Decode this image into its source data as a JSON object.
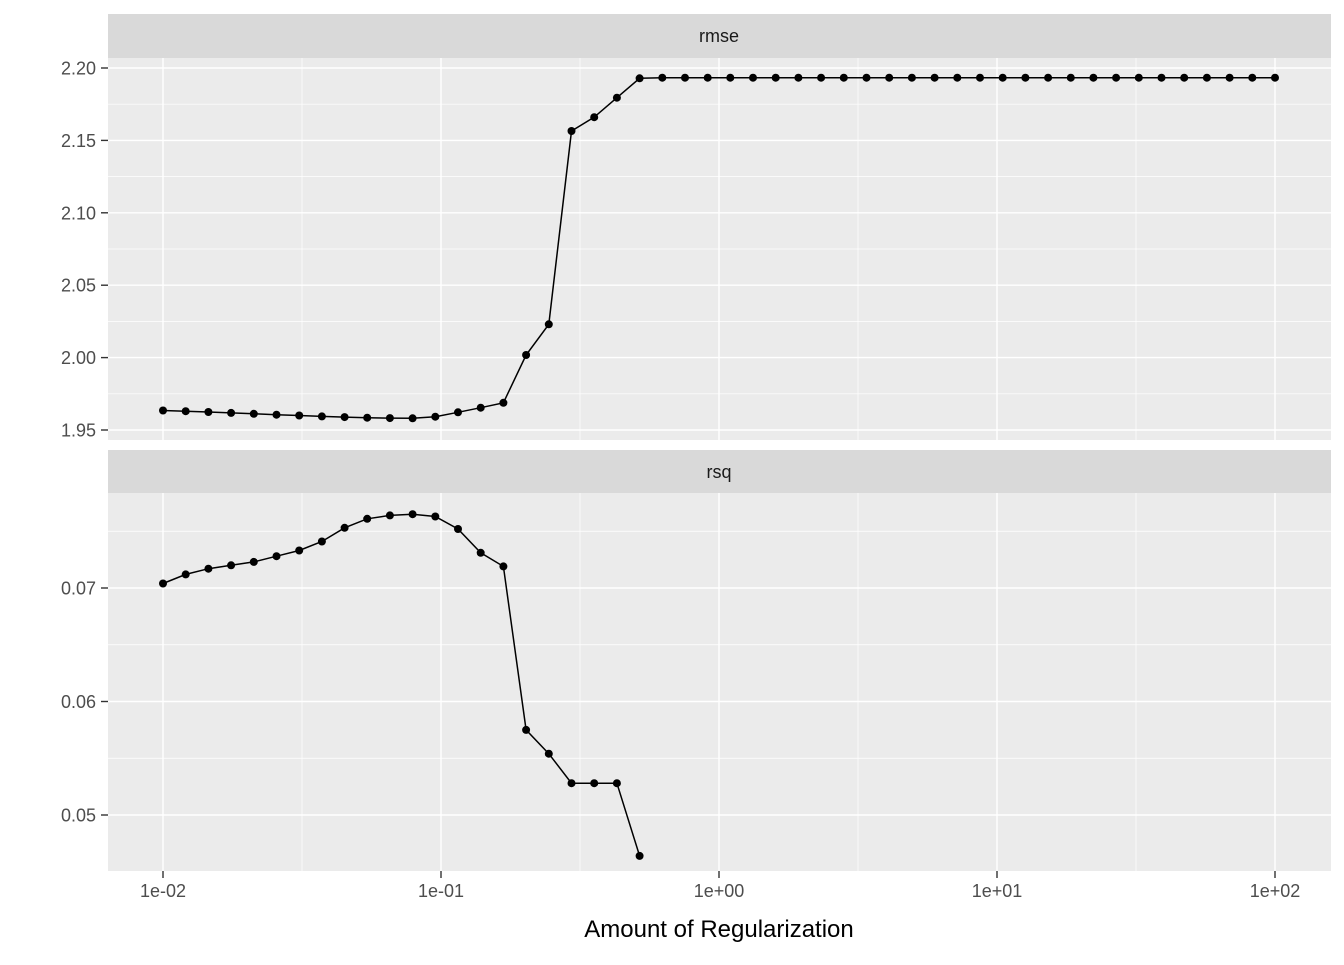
{
  "chart_data": {
    "type": "line",
    "title": "",
    "xlabel": "Amount of Regularization",
    "ylabel": "",
    "x_scale": "log10",
    "x_range_log10": [
      -2.2,
      2.2
    ],
    "legend": "none",
    "grid": "major-and-minor-white-on-grey",
    "xticks": [
      {
        "value": 0.01,
        "label": "1e-02"
      },
      {
        "value": 0.1,
        "label": "1e-01"
      },
      {
        "value": 1,
        "label": "1e+00"
      },
      {
        "value": 10,
        "label": "1e+01"
      },
      {
        "value": 100,
        "label": "1e+02"
      }
    ],
    "facets": [
      {
        "label": "rmse",
        "ylim": [
          1.947,
          2.206
        ],
        "yticks": [
          {
            "value": 1.95,
            "label": "1.95"
          },
          {
            "value": 2.0,
            "label": "2.00"
          },
          {
            "value": 2.05,
            "label": "2.05"
          },
          {
            "value": 2.1,
            "label": "2.10"
          },
          {
            "value": 2.15,
            "label": "2.15"
          },
          {
            "value": 2.2,
            "label": "2.20"
          }
        ],
        "series": {
          "name": "rmse",
          "x": [
            0.01,
            0.012068,
            0.014563,
            0.017575,
            0.02121,
            0.025595,
            0.030888,
            0.037276,
            0.044984,
            0.054287,
            0.065513,
            0.07906,
            0.09541,
            0.11514,
            0.13895,
            0.16768,
            0.20236,
            0.24421,
            0.29471,
            0.35565,
            0.42919,
            0.51795,
            0.62506,
            0.75431,
            0.9103,
            1.0985,
            1.3257,
            1.5999,
            1.9307,
            2.33,
            2.8118,
            3.3932,
            4.0949,
            4.9417,
            5.9636,
            7.1969,
            8.6851,
            10.481,
            12.649,
            15.264,
            18.421,
            22.23,
            26.827,
            32.375,
            39.069,
            47.149,
            56.899,
            68.665,
            82.864,
            100
          ],
          "y": [
            1.9635,
            1.963,
            1.9624,
            1.9618,
            1.9612,
            1.9606,
            1.96,
            1.9594,
            1.9589,
            1.9585,
            1.9582,
            1.9581,
            1.9592,
            1.9622,
            1.9654,
            1.9688,
            2.0018,
            2.023,
            2.1565,
            2.166,
            2.1795,
            2.1929,
            2.1933,
            2.1933,
            2.1933,
            2.1933,
            2.1933,
            2.1933,
            2.1933,
            2.1933,
            2.1933,
            2.1933,
            2.1933,
            2.1933,
            2.1933,
            2.1933,
            2.1933,
            2.1933,
            2.1933,
            2.1933,
            2.1933,
            2.1933,
            2.1933,
            2.1933,
            2.1933,
            2.1933,
            2.1933,
            2.1933,
            2.1933,
            2.1933
          ]
        }
      },
      {
        "label": "rsq",
        "ylim": [
          0.0449,
          0.078
        ],
        "yticks": [
          {
            "value": 0.05,
            "label": "0.05"
          },
          {
            "value": 0.06,
            "label": "0.06"
          },
          {
            "value": 0.07,
            "label": "0.07"
          }
        ],
        "series": {
          "name": "rsq",
          "x": [
            0.01,
            0.012068,
            0.014563,
            0.017575,
            0.02121,
            0.025595,
            0.030888,
            0.037276,
            0.044984,
            0.054287,
            0.065513,
            0.07906,
            0.09541,
            0.11514,
            0.13895,
            0.16768,
            0.20236,
            0.24421,
            0.29471,
            0.35565,
            0.42919,
            0.51795
          ],
          "y": [
            0.0704,
            0.0712,
            0.0717,
            0.072,
            0.0723,
            0.0728,
            0.0733,
            0.0741,
            0.0753,
            0.0761,
            0.0764,
            0.0765,
            0.0763,
            0.0752,
            0.0731,
            0.0719,
            0.0575,
            0.0554,
            0.0528,
            0.0528,
            0.0528,
            0.0464
          ]
        }
      }
    ],
    "colors": {
      "panel_bg": "#EBEBEB",
      "strip_bg": "#D9D9D9",
      "grid_line": "#FFFFFF",
      "series_line": "#000000",
      "point": "#000000",
      "tick_mark": "#333333",
      "axis_text": "#4D4D4D",
      "strip_text": "#1A1A1A",
      "axis_title": "#000000"
    }
  }
}
